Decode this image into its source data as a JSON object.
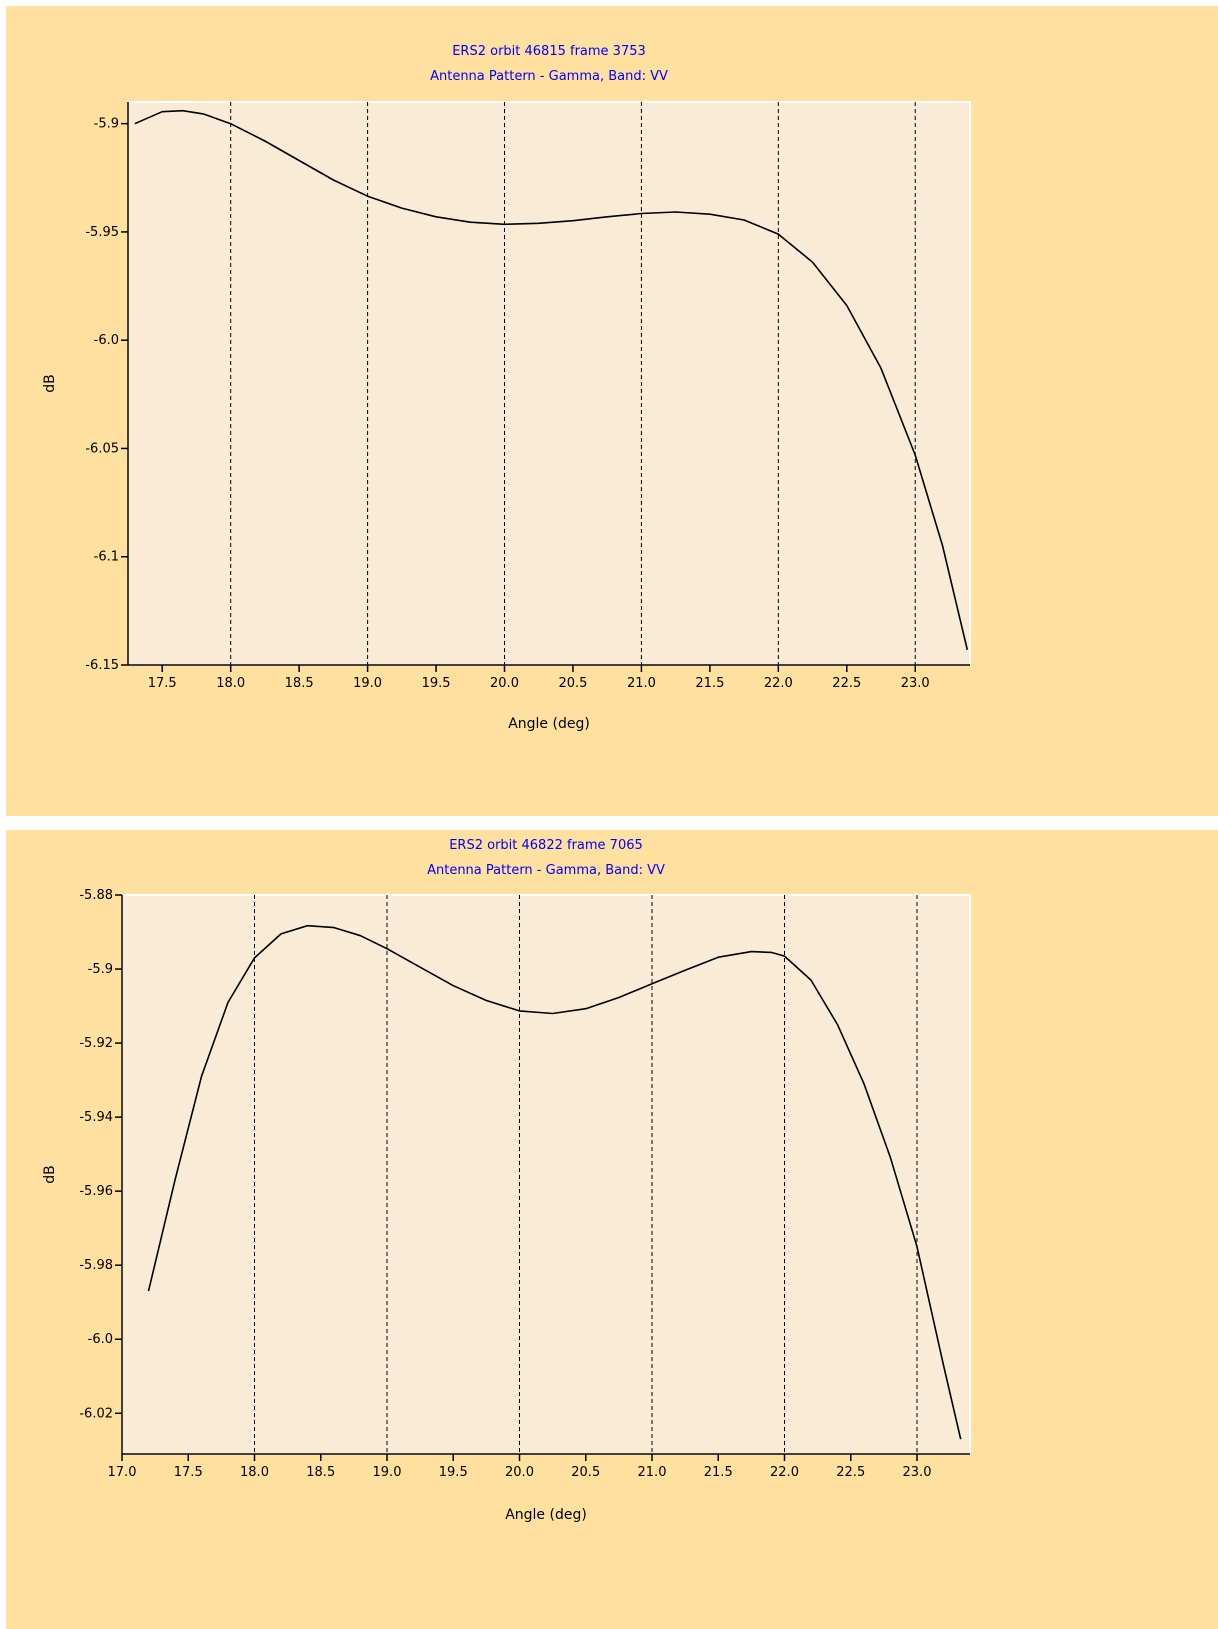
{
  "colors": {
    "background": "#ffe09e",
    "plot_area": "#faebd7",
    "title": "#0000ff",
    "line": "#000000"
  },
  "chart_data": [
    {
      "type": "line",
      "title": "ERS2 orbit 46815 frame 3753",
      "subtitle": "Antenna Pattern - Gamma, Band: VV",
      "xlabel": "Angle (deg)",
      "ylabel": "dB",
      "xlim": [
        17.25,
        23.4
      ],
      "ylim": [
        -6.15,
        -5.89
      ],
      "x_ticks": [
        17.5,
        18.0,
        18.5,
        19.0,
        19.5,
        20.0,
        20.5,
        21.0,
        21.5,
        22.0,
        22.5,
        23.0
      ],
      "x_tick_labels": [
        "17.5",
        "18.0",
        "18.5",
        "19.0",
        "19.5",
        "20.0",
        "20.5",
        "21.0",
        "21.5",
        "22.0",
        "22.5",
        "23.0"
      ],
      "y_ticks": [
        -5.9,
        -5.95,
        -6.0,
        -6.05,
        -6.1,
        -6.15
      ],
      "y_tick_labels": [
        "-5.9",
        "-5.95",
        "-6.0",
        "-6.05",
        "-6.1",
        "-6.15"
      ],
      "grid_x": [
        18.0,
        19.0,
        20.0,
        21.0,
        22.0,
        23.0
      ],
      "series": [
        {
          "x": [
            17.3,
            17.5,
            17.65,
            17.8,
            18.0,
            18.25,
            18.5,
            18.75,
            19.0,
            19.25,
            19.5,
            19.75,
            20.0,
            20.25,
            20.5,
            20.75,
            21.0,
            21.25,
            21.5,
            21.75,
            22.0,
            22.25,
            22.5,
            22.75,
            23.0,
            23.2,
            23.38
          ],
          "y": [
            -5.9,
            -5.8945,
            -5.894,
            -5.8955,
            -5.9,
            -5.908,
            -5.917,
            -5.926,
            -5.9335,
            -5.939,
            -5.943,
            -5.9455,
            -5.9465,
            -5.946,
            -5.9448,
            -5.943,
            -5.9415,
            -5.9408,
            -5.9418,
            -5.9445,
            -5.951,
            -5.964,
            -5.984,
            -6.013,
            -6.053,
            -6.095,
            -6.143
          ]
        }
      ]
    },
    {
      "type": "line",
      "title": "ERS2 orbit 46822 frame 7065",
      "subtitle": "Antenna Pattern - Gamma, Band: VV",
      "xlabel": "Angle (deg)",
      "ylabel": "dB",
      "xlim": [
        17.0,
        23.4
      ],
      "ylim": [
        -6.031,
        -5.88
      ],
      "x_ticks": [
        17.0,
        17.5,
        18.0,
        18.5,
        19.0,
        19.5,
        20.0,
        20.5,
        21.0,
        21.5,
        22.0,
        22.5,
        23.0
      ],
      "x_tick_labels": [
        "17.0",
        "17.5",
        "18.0",
        "18.5",
        "19.0",
        "19.5",
        "20.0",
        "20.5",
        "21.0",
        "21.5",
        "22.0",
        "22.5",
        "23.0"
      ],
      "y_ticks": [
        -5.88,
        -5.9,
        -5.92,
        -5.94,
        -5.96,
        -5.98,
        -6.0,
        -6.02
      ],
      "y_tick_labels": [
        "-5.88",
        "-5.9",
        "-5.92",
        "-5.94",
        "-5.96",
        "-5.98",
        "-6.0",
        "-6.02"
      ],
      "grid_x": [
        17.0,
        18.0,
        19.0,
        20.0,
        21.0,
        22.0,
        23.0
      ],
      "series": [
        {
          "x": [
            17.2,
            17.4,
            17.6,
            17.8,
            18.0,
            18.2,
            18.4,
            18.6,
            18.8,
            19.0,
            19.25,
            19.5,
            19.75,
            20.0,
            20.25,
            20.5,
            20.75,
            21.0,
            21.25,
            21.5,
            21.75,
            21.9,
            22.0,
            22.2,
            22.4,
            22.6,
            22.8,
            23.0,
            23.2,
            23.33
          ],
          "y": [
            -5.987,
            -5.957,
            -5.929,
            -5.909,
            -5.897,
            -5.8905,
            -5.8883,
            -5.8888,
            -5.891,
            -5.8945,
            -5.8995,
            -5.9045,
            -5.9085,
            -5.9113,
            -5.912,
            -5.9107,
            -5.9077,
            -5.904,
            -5.9003,
            -5.8968,
            -5.8953,
            -5.8955,
            -5.8965,
            -5.903,
            -5.915,
            -5.931,
            -5.951,
            -5.975,
            -6.007,
            -6.027
          ]
        }
      ]
    }
  ]
}
